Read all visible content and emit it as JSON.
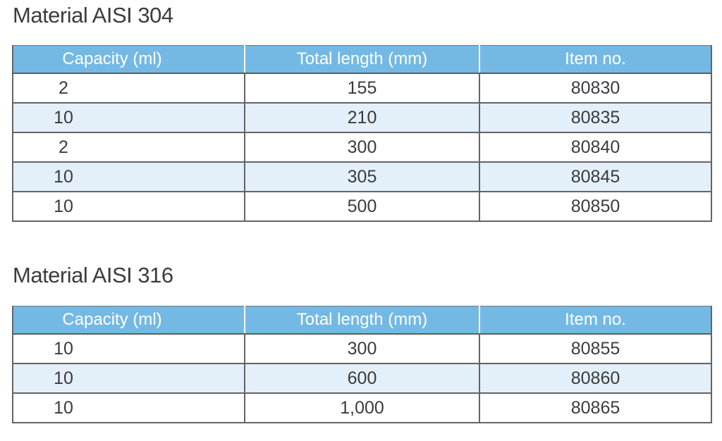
{
  "colors": {
    "header_bg": "#74b9e4",
    "header_text": "#ffffff",
    "row_bg": "#ffffff",
    "row_alt_bg": "#e3eff9",
    "border": "#636466",
    "body_text": "#3b3c3e"
  },
  "tables": [
    {
      "title": "Material AISI 304",
      "columns": [
        "Capacity (ml)",
        "Total length (mm)",
        "Item no."
      ],
      "rows": [
        [
          "2",
          "155",
          "80830"
        ],
        [
          "10",
          "210",
          "80835"
        ],
        [
          "2",
          "300",
          "80840"
        ],
        [
          "10",
          "305",
          "80845"
        ],
        [
          "10",
          "500",
          "80850"
        ]
      ]
    },
    {
      "title": "Material AISI 316",
      "columns": [
        "Capacity (ml)",
        "Total length (mm)",
        "Item no."
      ],
      "rows": [
        [
          "10",
          "300",
          "80855"
        ],
        [
          "10",
          "600",
          "80860"
        ],
        [
          "10",
          "1,000",
          "80865"
        ]
      ]
    }
  ]
}
